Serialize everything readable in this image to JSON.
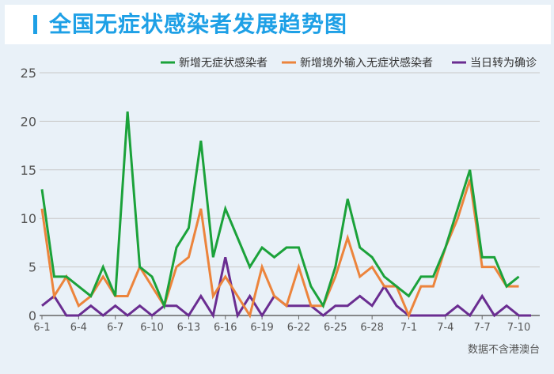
{
  "header": {
    "title": "全国无症状感染者发展趋势图"
  },
  "footnote": "数据不含港澳台",
  "chart_data": {
    "type": "line",
    "title": "全国无症状感染者发展趋势图",
    "x": [
      "6-1",
      "6-2",
      "6-3",
      "6-4",
      "6-5",
      "6-6",
      "6-7",
      "6-8",
      "6-9",
      "6-10",
      "6-11",
      "6-12",
      "6-13",
      "6-14",
      "6-15",
      "6-16",
      "6-17",
      "6-18",
      "6-19",
      "6-20",
      "6-21",
      "6-22",
      "6-23",
      "6-24",
      "6-25",
      "6-26",
      "6-27",
      "6-28",
      "6-29",
      "6-30",
      "7-1",
      "7-2",
      "7-3",
      "7-4",
      "7-5",
      "7-6",
      "7-7",
      "7-8",
      "7-9",
      "7-10",
      "7-11"
    ],
    "xticks": [
      "6-1",
      "6-4",
      "6-7",
      "6-10",
      "6-13",
      "6-16",
      "6-19",
      "6-22",
      "6-25",
      "6-28",
      "7-1",
      "7-4",
      "7-7",
      "7-10"
    ],
    "ylim": [
      0,
      25
    ],
    "yticks": [
      0,
      5,
      10,
      15,
      20,
      25
    ],
    "grid": "horizontal",
    "legend_position": "top-right",
    "series": [
      {
        "name": "新增无症状感染者",
        "color": "#1ba23a",
        "values": [
          13,
          4,
          4,
          3,
          2,
          5,
          2,
          21,
          5,
          4,
          1,
          7,
          9,
          18,
          6,
          11,
          8,
          5,
          7,
          6,
          7,
          7,
          3,
          1,
          5,
          12,
          7,
          6,
          4,
          3,
          2,
          4,
          4,
          7,
          11,
          15,
          6,
          6,
          3,
          4,
          null
        ]
      },
      {
        "name": "新增境外输入无症状感染者",
        "color": "#ec843c",
        "values": [
          11,
          2,
          4,
          1,
          2,
          4,
          2,
          2,
          5,
          3,
          1,
          5,
          6,
          11,
          2,
          4,
          2,
          0,
          5,
          2,
          1,
          5,
          1,
          1,
          4,
          8,
          4,
          5,
          3,
          3,
          0,
          3,
          3,
          7,
          10,
          14,
          5,
          5,
          3,
          3,
          null
        ]
      },
      {
        "name": "当日转为确诊",
        "color": "#6a2d91",
        "values": [
          1,
          2,
          0,
          0,
          1,
          0,
          1,
          0,
          1,
          0,
          1,
          1,
          0,
          2,
          0,
          6,
          0,
          2,
          0,
          2,
          1,
          1,
          1,
          0,
          1,
          1,
          2,
          1,
          3,
          1,
          0,
          0,
          0,
          0,
          1,
          0,
          2,
          0,
          1,
          0,
          0
        ]
      }
    ]
  }
}
